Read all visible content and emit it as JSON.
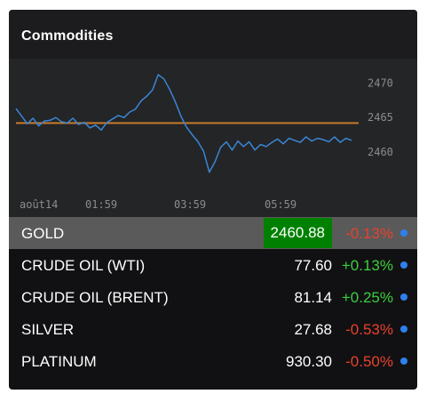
{
  "widget": {
    "title": "Commodities"
  },
  "chart_data": {
    "type": "line",
    "x_ticks": [
      "août14",
      "01:59",
      "03:59",
      "05:59"
    ],
    "y_ticks": [
      2470,
      2465,
      2460
    ],
    "ylim": [
      2455.5,
      2473
    ],
    "reference_line": 2464.2,
    "series": [
      {
        "values": [
          2466.3,
          2465.2,
          2464.1,
          2464.9,
          2463.8,
          2464.5,
          2464.6,
          2465.0,
          2464.4,
          2464.2,
          2464.9,
          2464.0,
          2464.3,
          2463.5,
          2463.9,
          2463.2,
          2464.3,
          2464.8,
          2465.3,
          2465.0,
          2465.8,
          2466.2,
          2467.4,
          2468.1,
          2469.0,
          2471.2,
          2470.6,
          2469.1,
          2467.3,
          2465.2,
          2463.6,
          2462.5,
          2461.5,
          2460.1,
          2457.1,
          2458.6,
          2460.7,
          2461.5,
          2460.3,
          2461.6,
          2460.8,
          2461.5,
          2460.3,
          2461.1,
          2460.8,
          2461.4,
          2461.9,
          2461.2,
          2462.0,
          2461.7,
          2461.4,
          2462.2,
          2461.6,
          2462.0,
          2461.8,
          2461.5,
          2462.2,
          2461.4,
          2462.0,
          2461.7
        ]
      }
    ],
    "colors": {
      "line": "#3a86d6",
      "reference": "#c77a2a"
    }
  },
  "commodities": [
    {
      "name": "GOLD",
      "price": "2460.88",
      "change": "-0.13%",
      "direction": "down",
      "selected": true
    },
    {
      "name": "CRUDE OIL (WTI)",
      "price": "77.60",
      "change": "+0.13%",
      "direction": "up",
      "selected": false
    },
    {
      "name": "CRUDE OIL (BRENT)",
      "price": "81.14",
      "change": "+0.25%",
      "direction": "up",
      "selected": false
    },
    {
      "name": "SILVER",
      "price": "27.68",
      "change": "-0.53%",
      "direction": "down",
      "selected": false
    },
    {
      "name": "PLATINUM",
      "price": "930.30",
      "change": "-0.50%",
      "direction": "down",
      "selected": false
    }
  ],
  "colors": {
    "up": "#3ecf3e",
    "down": "#e8412c",
    "indicator_dot": "#2f80ed",
    "selected_price_bg": "#008000"
  }
}
